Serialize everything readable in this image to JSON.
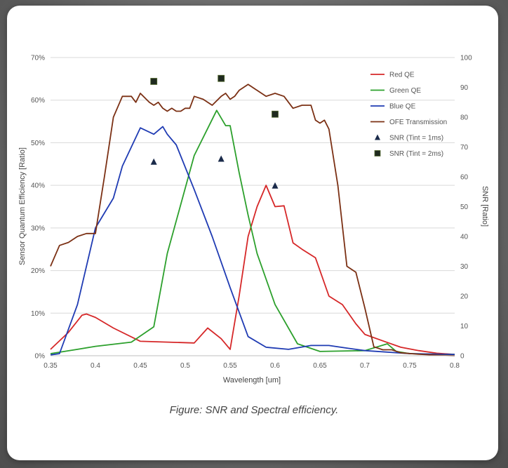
{
  "figure": {
    "caption": "Figure: SNR and Spectral efficiency."
  },
  "chart_data": {
    "type": "line",
    "xlabel": "Wavelength [um]",
    "ylabel_left": "Sensor Quantum Efficiency [Ratio]",
    "ylabel_right": "SNR [Ratio]",
    "xlim": [
      0.35,
      0.8
    ],
    "ylim_left": [
      0,
      70
    ],
    "ylim_right": [
      0,
      100
    ],
    "x_ticks": [
      "0.35",
      "0.4",
      "0.45",
      "0.5",
      "0.55",
      "0.6",
      "0.65",
      "0.7",
      "0.75",
      "0.8"
    ],
    "y_ticks_left": [
      "0%",
      "10%",
      "20%",
      "30%",
      "40%",
      "50%",
      "60%",
      "70%"
    ],
    "y_ticks_right": [
      "0",
      "10",
      "20",
      "30",
      "40",
      "50",
      "60",
      "70",
      "80",
      "90",
      "100"
    ],
    "grid": "horizontal",
    "legend_position": "top-right",
    "series": [
      {
        "name": "Red QE",
        "color": "#d62728",
        "axis": "left",
        "x": [
          0.35,
          0.37,
          0.385,
          0.39,
          0.4,
          0.42,
          0.45,
          0.51,
          0.525,
          0.54,
          0.55,
          0.56,
          0.57,
          0.58,
          0.59,
          0.6,
          0.61,
          0.62,
          0.63,
          0.645,
          0.66,
          0.675,
          0.69,
          0.7,
          0.72,
          0.74,
          0.76,
          0.78,
          0.8
        ],
        "y": [
          1.5,
          5.5,
          9.5,
          9.8,
          9.0,
          6.5,
          3.4,
          3.0,
          6.5,
          4.0,
          1.5,
          14.0,
          28.0,
          35.0,
          40.0,
          35.0,
          35.2,
          26.5,
          25.0,
          23.0,
          14.0,
          12.0,
          7.5,
          5.0,
          3.5,
          2.0,
          1.2,
          0.6,
          0.3
        ]
      },
      {
        "name": "Green QE",
        "color": "#2ca02c",
        "axis": "left",
        "x": [
          0.35,
          0.38,
          0.4,
          0.44,
          0.465,
          0.48,
          0.51,
          0.535,
          0.545,
          0.55,
          0.56,
          0.57,
          0.58,
          0.6,
          0.625,
          0.65,
          0.7,
          0.725,
          0.735,
          0.75,
          0.8
        ],
        "y": [
          0.5,
          1.5,
          2.2,
          3.2,
          6.8,
          24.0,
          47.0,
          57.6,
          54.0,
          54.0,
          43.0,
          33.0,
          24.0,
          12.0,
          2.8,
          1.0,
          1.2,
          2.8,
          1.0,
          0.5,
          0.3
        ]
      },
      {
        "name": "Blue QE",
        "color": "#1f3bb3",
        "axis": "left",
        "x": [
          0.35,
          0.36,
          0.38,
          0.4,
          0.42,
          0.43,
          0.45,
          0.465,
          0.475,
          0.48,
          0.49,
          0.51,
          0.53,
          0.55,
          0.57,
          0.59,
          0.615,
          0.64,
          0.66,
          0.68,
          0.7,
          0.75,
          0.8
        ],
        "y": [
          0.2,
          0.5,
          12.0,
          30.0,
          37.0,
          44.5,
          53.5,
          52.0,
          53.8,
          52.0,
          49.5,
          39.0,
          28.0,
          16.0,
          4.5,
          2.0,
          1.5,
          2.4,
          2.4,
          1.8,
          1.2,
          0.5,
          0.3
        ]
      },
      {
        "name": "OFE Transmission",
        "color": "#7b3014",
        "axis": "right",
        "x": [
          0.35,
          0.36,
          0.37,
          0.38,
          0.39,
          0.4,
          0.41,
          0.42,
          0.43,
          0.44,
          0.445,
          0.45,
          0.46,
          0.465,
          0.47,
          0.475,
          0.48,
          0.485,
          0.49,
          0.495,
          0.5,
          0.505,
          0.51,
          0.52,
          0.53,
          0.54,
          0.545,
          0.55,
          0.555,
          0.56,
          0.57,
          0.58,
          0.59,
          0.6,
          0.61,
          0.62,
          0.63,
          0.64,
          0.645,
          0.65,
          0.655,
          0.66,
          0.67,
          0.68,
          0.69,
          0.7,
          0.71,
          0.72,
          0.73,
          0.74,
          0.76,
          0.78,
          0.8
        ],
        "y": [
          30,
          37,
          38,
          40,
          41,
          41,
          60,
          80,
          87,
          87,
          85,
          88,
          85,
          84,
          85,
          83,
          82,
          83,
          82,
          82,
          83,
          83,
          87,
          86,
          84,
          87,
          88,
          86,
          87,
          89,
          91,
          89,
          87,
          88,
          87,
          83,
          84,
          84,
          79,
          78,
          79,
          76,
          57,
          30,
          28,
          16,
          3,
          2,
          2,
          1,
          0.5,
          0.2,
          0
        ]
      },
      {
        "name": "SNR (Tint = 1ms)",
        "color": "#1a2a4a",
        "axis": "right",
        "marker": "triangle",
        "x": [
          0.465,
          0.54,
          0.6
        ],
        "y": [
          65,
          66,
          57
        ]
      },
      {
        "name": "SNR (Tint = 2ms)",
        "color": "#1f2a1f",
        "axis": "right",
        "marker": "square",
        "x": [
          0.465,
          0.54,
          0.6
        ],
        "y": [
          92,
          93,
          81
        ]
      }
    ]
  }
}
